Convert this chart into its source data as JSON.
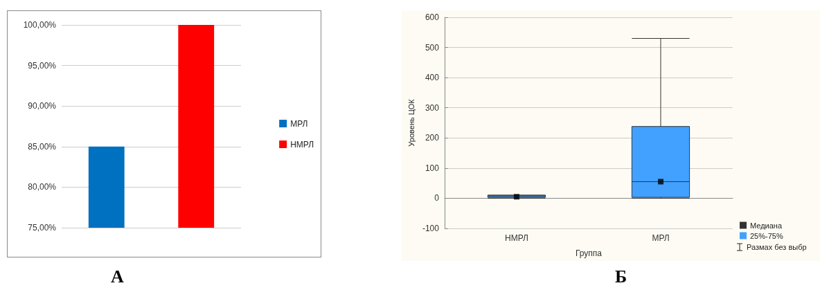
{
  "chart_data": [
    {
      "type": "bar",
      "categories": [
        null,
        null
      ],
      "series": [
        {
          "name": "МРЛ",
          "color": "#0070c0",
          "values": [
            85,
            null
          ]
        },
        {
          "name": "НМРЛ",
          "color": "#ff0000",
          "values": [
            null,
            100
          ]
        }
      ],
      "ylim": [
        75,
        100
      ],
      "yticks": [
        {
          "value": 75,
          "label": "75,00%"
        },
        {
          "value": 80,
          "label": "80,00%"
        },
        {
          "value": 85,
          "label": "85,00%"
        },
        {
          "value": 90,
          "label": "90,00%"
        },
        {
          "value": 95,
          "label": "95,00%"
        },
        {
          "value": 100,
          "label": "100,00%"
        }
      ],
      "grid": "y",
      "legend": "right",
      "annotations": [
        "А"
      ]
    },
    {
      "type": "box",
      "categories": [
        "НМРЛ",
        "МРЛ"
      ],
      "xlabel": "Группа",
      "ylabel": "Уровень ЦОК",
      "series": [
        {
          "type": "scatter",
          "name": "Медиана",
          "color": "#000000",
          "x": [
            "НМРЛ",
            "МРЛ"
          ],
          "values": [
            5,
            55
          ]
        },
        {
          "type": "box",
          "name": "25%-75%",
          "color": "#42a0ff",
          "boxes": [
            {
              "low": 0,
              "q1": 3,
              "median": 5,
              "q3": 10,
              "high": 10
            },
            {
              "low": 0,
              "q1": 3,
              "median": 55,
              "q3": 238,
              "high": 530
            }
          ]
        }
      ],
      "ylim": [
        -100,
        600
      ],
      "yticks": [
        -100,
        0,
        100,
        200,
        300,
        400,
        500,
        600
      ],
      "grid": "y",
      "legend": "bottom right",
      "marker": "square",
      "annotations": [
        "Размах без выбр",
        "Б"
      ]
    }
  ]
}
